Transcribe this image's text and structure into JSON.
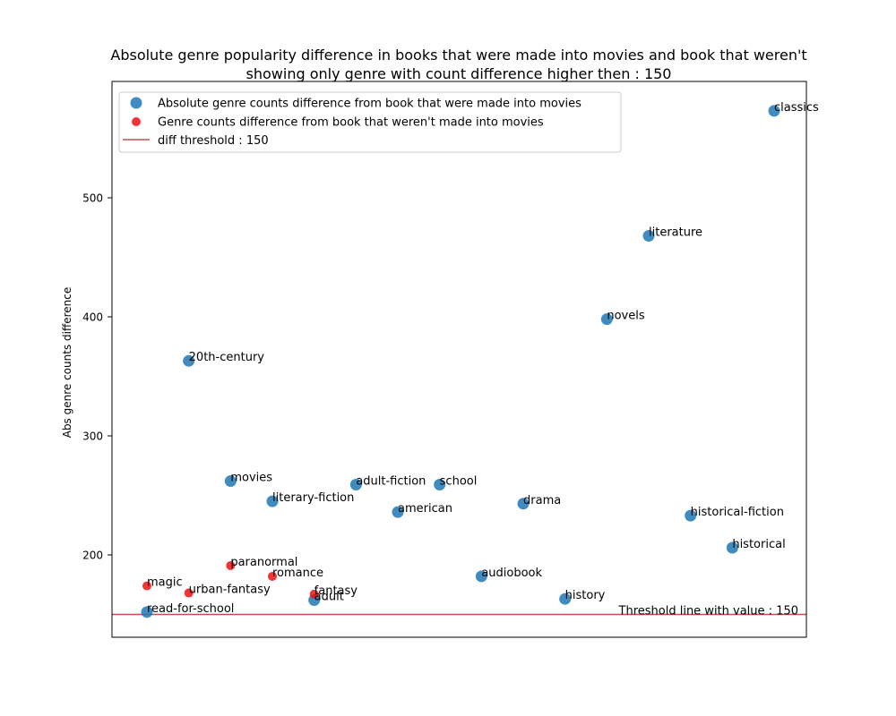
{
  "chart_data": {
    "type": "scatter",
    "title_line1": "Absolute genre popularity difference in books that were made into movies and book that weren't",
    "title_line2": "showing only genre with count difference higher then :  150",
    "xlabel": "",
    "ylabel": "Abs genre counts difference",
    "ylim": [
      130,
      595
    ],
    "yticks": [
      "200",
      "300",
      "400",
      "500"
    ],
    "grid": false,
    "legend_position": "upper-left",
    "x_index_range": [
      0,
      15.5
    ],
    "series": [
      {
        "name": "Absolute genre counts  difference from book that were made into movies",
        "color": "#1f77b4",
        "points": [
          {
            "label": "read-for-school",
            "x": 0,
            "y": 152
          },
          {
            "label": "20th-century",
            "x": 1,
            "y": 363
          },
          {
            "label": "movies",
            "x": 2,
            "y": 262
          },
          {
            "label": "literary-fiction",
            "x": 3,
            "y": 245
          },
          {
            "label": "adult",
            "x": 4,
            "y": 162
          },
          {
            "label": "adult-fiction",
            "x": 5,
            "y": 259
          },
          {
            "label": "american",
            "x": 6,
            "y": 236
          },
          {
            "label": "school",
            "x": 7,
            "y": 259
          },
          {
            "label": "audiobook",
            "x": 8,
            "y": 182
          },
          {
            "label": "drama",
            "x": 9,
            "y": 243
          },
          {
            "label": "history",
            "x": 10,
            "y": 163
          },
          {
            "label": "novels",
            "x": 11,
            "y": 398
          },
          {
            "label": "literature",
            "x": 12,
            "y": 468
          },
          {
            "label": "historical-fiction",
            "x": 13,
            "y": 233
          },
          {
            "label": "historical",
            "x": 14,
            "y": 206
          },
          {
            "label": "classics",
            "x": 15,
            "y": 573
          }
        ]
      },
      {
        "name": "Genre counts difference from book that weren't made into movies",
        "color": "#ee1111",
        "points": [
          {
            "label": "magic",
            "x": 0,
            "y": 174
          },
          {
            "label": "urban-fantasy",
            "x": 1,
            "y": 168
          },
          {
            "label": "paranormal",
            "x": 2,
            "y": 191
          },
          {
            "label": "romance",
            "x": 3,
            "y": 182
          },
          {
            "label": "fantasy",
            "x": 4,
            "y": 167
          }
        ]
      }
    ],
    "threshold": {
      "name": "diff threshold : 150",
      "value": 150,
      "color": "#c0504d",
      "annotation": "Threshold line with value : 150"
    }
  }
}
